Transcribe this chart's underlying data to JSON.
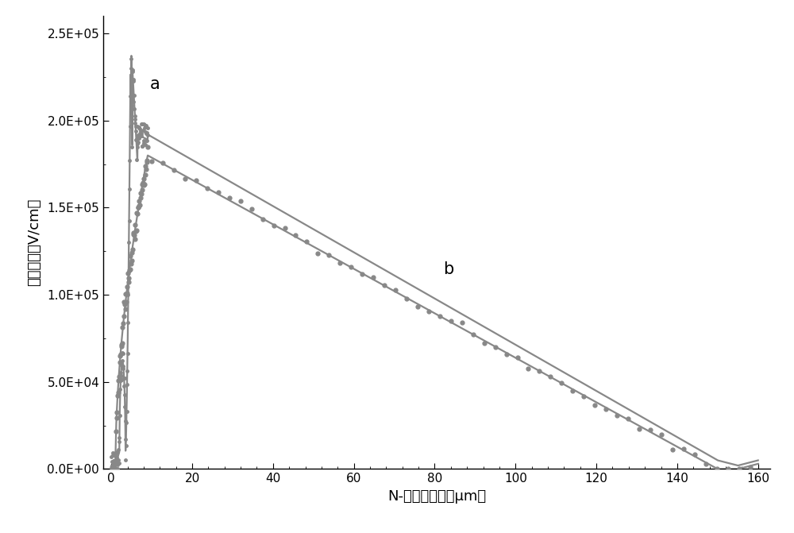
{
  "xlabel": "N-漂移区厚度（μm）",
  "ylabel": "电场强度（V/cm）",
  "label_a": "a",
  "label_b": "b",
  "xlim": [
    -2,
    163
  ],
  "ylim": [
    0,
    260000
  ],
  "yticks": [
    0,
    50000,
    100000,
    150000,
    200000,
    250000
  ],
  "ytick_labels": [
    "0.0E+00",
    "5.0E+04",
    "1.0E+05",
    "1.5E+05",
    "2.0E+05",
    "2.5E+05"
  ],
  "xticks": [
    0,
    20,
    40,
    60,
    80,
    100,
    120,
    140,
    160
  ],
  "line_color": "#888888",
  "dot_color": "#888888",
  "bg_color": "#ffffff",
  "font_size_label": 13,
  "font_size_tick": 11,
  "font_size_annotation": 15
}
